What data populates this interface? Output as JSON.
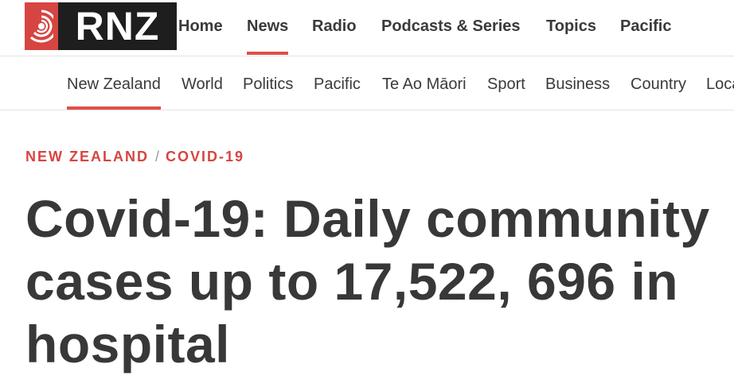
{
  "brand": {
    "logo_text": "RNZ",
    "accent": "#d64541"
  },
  "main_nav": {
    "items": [
      {
        "label": "Home"
      },
      {
        "label": "News",
        "active": true
      },
      {
        "label": "Radio"
      },
      {
        "label": "Podcasts & Series"
      },
      {
        "label": "Topics"
      },
      {
        "label": "Pacific"
      }
    ]
  },
  "sub_nav": {
    "items": [
      {
        "label": "New Zealand",
        "active": true
      },
      {
        "label": "World"
      },
      {
        "label": "Politics"
      },
      {
        "label": "Pacific"
      },
      {
        "label": "Te Ao Māori"
      },
      {
        "label": "Sport"
      },
      {
        "label": "Business"
      },
      {
        "label": "Country"
      },
      {
        "label": "Local Democracy Reporting"
      }
    ]
  },
  "breadcrumb": {
    "section": "NEW ZEALAND",
    "separator": "/",
    "topic": "COVID-19"
  },
  "article": {
    "headline": "Covid-19: Daily community cases up to 17,522, 696 in hospital"
  }
}
